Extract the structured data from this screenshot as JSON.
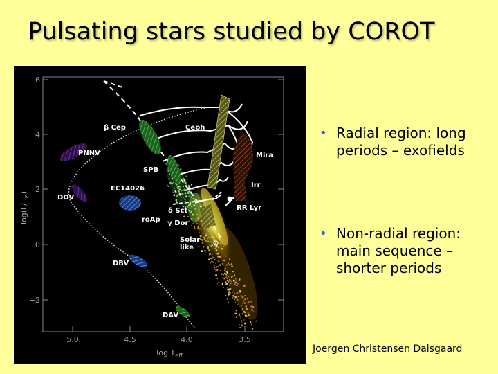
{
  "slide": {
    "title": "Pulsating stars studied by COROT",
    "bullets": [
      {
        "text": "Radial region: long\nperiods – exofields"
      },
      {
        "text": "Non-radial region:\nmain sequence –\nshorter periods"
      }
    ],
    "credit": "Joergen Christensen Dalsgaard",
    "colors": {
      "background": "#ffff99",
      "bullet": "#3366cc"
    }
  },
  "diagram": {
    "y_ticks": [
      "6",
      "4",
      "2",
      "0",
      "−2"
    ],
    "x_ticks": [
      "5.0",
      "4.5",
      "4.0",
      "3.5"
    ],
    "x_axis_label": "log T",
    "x_axis_sub": "eff",
    "y_axis_label": "log(L/L",
    "y_axis_sub": "⊙",
    "y_axis_close": ")",
    "regions": {
      "beta_cep": "β Cep",
      "ceph": "Ceph",
      "pnnv": "PNNV",
      "spb": "SPB",
      "mira": "Mira",
      "ec14026": "EC14026",
      "irr": "Irr",
      "dov": "DOV",
      "delta_sct": "δ  Sct",
      "rr_lyr": "RR Lyr",
      "roap": "roAp",
      "gamma_dor": "γ  Dor",
      "solar_like_1": "Solar-",
      "solar_like_2": "like",
      "dbv": "DBV",
      "dav": "DAV"
    }
  }
}
